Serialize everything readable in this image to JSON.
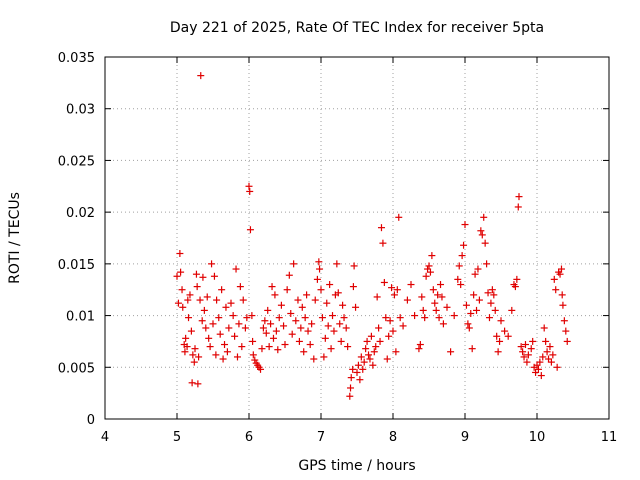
{
  "chart_data": {
    "type": "scatter",
    "title": "Day 221 of 2025, Rate Of TEC Index for receiver 5pta",
    "xlabel": "GPS time / hours",
    "ylabel": "ROTI / TECUs",
    "xlim": [
      4,
      11
    ],
    "ylim": [
      0,
      0.035
    ],
    "xticks": [
      "4",
      "5",
      "6",
      "7",
      "8",
      "9",
      "10",
      "11"
    ],
    "yticks": [
      "0",
      "0.005",
      "0.01",
      "0.015",
      "0.02",
      "0.025",
      "0.03",
      "0.035"
    ],
    "marker": "+",
    "color": "#e00000",
    "grid": true,
    "series": [
      {
        "name": "ROTI",
        "points": [
          [
            5.0,
            0.0138
          ],
          [
            5.02,
            0.0112
          ],
          [
            5.04,
            0.016
          ],
          [
            5.05,
            0.0142
          ],
          [
            5.07,
            0.0125
          ],
          [
            5.08,
            0.0108
          ],
          [
            5.1,
            0.0072
          ],
          [
            5.11,
            0.0065
          ],
          [
            5.12,
            0.0078
          ],
          [
            5.14,
            0.007
          ],
          [
            5.15,
            0.0115
          ],
          [
            5.16,
            0.0098
          ],
          [
            5.18,
            0.012
          ],
          [
            5.2,
            0.0085
          ],
          [
            5.21,
            0.0035
          ],
          [
            5.22,
            0.0062
          ],
          [
            5.24,
            0.0055
          ],
          [
            5.25,
            0.0068
          ],
          [
            5.27,
            0.014
          ],
          [
            5.28,
            0.0128
          ],
          [
            5.29,
            0.0034
          ],
          [
            5.3,
            0.006
          ],
          [
            5.32,
            0.0115
          ],
          [
            5.33,
            0.0332
          ],
          [
            5.35,
            0.0095
          ],
          [
            5.36,
            0.0137
          ],
          [
            5.38,
            0.0105
          ],
          [
            5.4,
            0.0088
          ],
          [
            5.42,
            0.0118
          ],
          [
            5.44,
            0.0078
          ],
          [
            5.46,
            0.007
          ],
          [
            5.48,
            0.015
          ],
          [
            5.5,
            0.0092
          ],
          [
            5.52,
            0.0138
          ],
          [
            5.54,
            0.0062
          ],
          [
            5.55,
            0.0115
          ],
          [
            5.58,
            0.0098
          ],
          [
            5.6,
            0.0082
          ],
          [
            5.62,
            0.0125
          ],
          [
            5.64,
            0.0058
          ],
          [
            5.66,
            0.0072
          ],
          [
            5.68,
            0.0108
          ],
          [
            5.7,
            0.0065
          ],
          [
            5.72,
            0.0088
          ],
          [
            5.75,
            0.0112
          ],
          [
            5.78,
            0.01
          ],
          [
            5.8,
            0.008
          ],
          [
            5.82,
            0.0145
          ],
          [
            5.84,
            0.006
          ],
          [
            5.86,
            0.0092
          ],
          [
            5.88,
            0.0128
          ],
          [
            5.9,
            0.007
          ],
          [
            5.92,
            0.0115
          ],
          [
            5.95,
            0.0088
          ],
          [
            5.97,
            0.0098
          ],
          [
            6.0,
            0.0225
          ],
          [
            6.01,
            0.022
          ],
          [
            6.02,
            0.0183
          ],
          [
            6.04,
            0.01
          ],
          [
            6.05,
            0.0075
          ],
          [
            6.06,
            0.0062
          ],
          [
            6.08,
            0.0057
          ],
          [
            6.1,
            0.0054
          ],
          [
            6.12,
            0.0052
          ],
          [
            6.14,
            0.005
          ],
          [
            6.16,
            0.0048
          ],
          [
            6.18,
            0.0068
          ],
          [
            6.2,
            0.0088
          ],
          [
            6.22,
            0.0095
          ],
          [
            6.24,
            0.0083
          ],
          [
            6.26,
            0.0105
          ],
          [
            6.28,
            0.007
          ],
          [
            6.3,
            0.0092
          ],
          [
            6.32,
            0.0128
          ],
          [
            6.34,
            0.0078
          ],
          [
            6.36,
            0.012
          ],
          [
            6.38,
            0.0085
          ],
          [
            6.4,
            0.0067
          ],
          [
            6.42,
            0.0098
          ],
          [
            6.45,
            0.011
          ],
          [
            6.48,
            0.009
          ],
          [
            6.5,
            0.0072
          ],
          [
            6.53,
            0.0125
          ],
          [
            6.56,
            0.0139
          ],
          [
            6.58,
            0.0102
          ],
          [
            6.6,
            0.0082
          ],
          [
            6.62,
            0.015
          ],
          [
            6.65,
            0.0095
          ],
          [
            6.68,
            0.0115
          ],
          [
            6.7,
            0.0075
          ],
          [
            6.72,
            0.0088
          ],
          [
            6.74,
            0.0108
          ],
          [
            6.76,
            0.0065
          ],
          [
            6.78,
            0.0098
          ],
          [
            6.8,
            0.012
          ],
          [
            6.82,
            0.0085
          ],
          [
            6.85,
            0.0072
          ],
          [
            6.87,
            0.0092
          ],
          [
            6.9,
            0.0058
          ],
          [
            6.92,
            0.0115
          ],
          [
            6.95,
            0.0135
          ],
          [
            6.97,
            0.0152
          ],
          [
            6.98,
            0.0145
          ],
          [
            7.0,
            0.0125
          ],
          [
            7.02,
            0.0098
          ],
          [
            7.04,
            0.006
          ],
          [
            7.06,
            0.0078
          ],
          [
            7.08,
            0.0112
          ],
          [
            7.1,
            0.009
          ],
          [
            7.12,
            0.013
          ],
          [
            7.14,
            0.0068
          ],
          [
            7.16,
            0.01
          ],
          [
            7.18,
            0.0085
          ],
          [
            7.2,
            0.012
          ],
          [
            7.22,
            0.015
          ],
          [
            7.24,
            0.0122
          ],
          [
            7.26,
            0.0092
          ],
          [
            7.28,
            0.0075
          ],
          [
            7.3,
            0.011
          ],
          [
            7.32,
            0.0098
          ],
          [
            7.35,
            0.0088
          ],
          [
            7.37,
            0.007
          ],
          [
            7.4,
            0.0022
          ],
          [
            7.41,
            0.003
          ],
          [
            7.42,
            0.004
          ],
          [
            7.44,
            0.0048
          ],
          [
            7.45,
            0.0128
          ],
          [
            7.46,
            0.0148
          ],
          [
            7.48,
            0.0108
          ],
          [
            7.5,
            0.0045
          ],
          [
            7.52,
            0.0052
          ],
          [
            7.54,
            0.0038
          ],
          [
            7.56,
            0.006
          ],
          [
            7.58,
            0.0048
          ],
          [
            7.6,
            0.0055
          ],
          [
            7.62,
            0.0068
          ],
          [
            7.64,
            0.0075
          ],
          [
            7.66,
            0.0062
          ],
          [
            7.68,
            0.0058
          ],
          [
            7.7,
            0.008
          ],
          [
            7.72,
            0.0052
          ],
          [
            7.74,
            0.0065
          ],
          [
            7.76,
            0.007
          ],
          [
            7.78,
            0.0118
          ],
          [
            7.8,
            0.0088
          ],
          [
            7.82,
            0.0075
          ],
          [
            7.84,
            0.0185
          ],
          [
            7.86,
            0.017
          ],
          [
            7.88,
            0.0132
          ],
          [
            7.9,
            0.0098
          ],
          [
            7.92,
            0.0058
          ],
          [
            7.94,
            0.008
          ],
          [
            7.96,
            0.0095
          ],
          [
            7.98,
            0.0127
          ],
          [
            8.0,
            0.0085
          ],
          [
            8.02,
            0.012
          ],
          [
            8.04,
            0.0065
          ],
          [
            8.06,
            0.0125
          ],
          [
            8.08,
            0.0195
          ],
          [
            8.1,
            0.0098
          ],
          [
            8.14,
            0.009
          ],
          [
            8.2,
            0.0115
          ],
          [
            8.25,
            0.013
          ],
          [
            8.3,
            0.01
          ],
          [
            8.36,
            0.0068
          ],
          [
            8.38,
            0.0072
          ],
          [
            8.4,
            0.0118
          ],
          [
            8.42,
            0.0105
          ],
          [
            8.44,
            0.0098
          ],
          [
            8.46,
            0.0138
          ],
          [
            8.48,
            0.0145
          ],
          [
            8.5,
            0.0148
          ],
          [
            8.52,
            0.0142
          ],
          [
            8.54,
            0.0158
          ],
          [
            8.56,
            0.0125
          ],
          [
            8.58,
            0.0112
          ],
          [
            8.6,
            0.0105
          ],
          [
            8.62,
            0.012
          ],
          [
            8.64,
            0.0098
          ],
          [
            8.66,
            0.013
          ],
          [
            8.68,
            0.0118
          ],
          [
            8.7,
            0.0092
          ],
          [
            8.75,
            0.0108
          ],
          [
            8.8,
            0.0065
          ],
          [
            8.85,
            0.01
          ],
          [
            8.9,
            0.0135
          ],
          [
            8.92,
            0.0148
          ],
          [
            8.94,
            0.013
          ],
          [
            8.96,
            0.0158
          ],
          [
            8.98,
            0.0168
          ],
          [
            9.0,
            0.0188
          ],
          [
            9.02,
            0.011
          ],
          [
            9.04,
            0.0092
          ],
          [
            9.06,
            0.0088
          ],
          [
            9.08,
            0.0102
          ],
          [
            9.1,
            0.0068
          ],
          [
            9.12,
            0.012
          ],
          [
            9.14,
            0.014
          ],
          [
            9.16,
            0.0105
          ],
          [
            9.18,
            0.0145
          ],
          [
            9.2,
            0.0115
          ],
          [
            9.22,
            0.0182
          ],
          [
            9.24,
            0.0178
          ],
          [
            9.26,
            0.0195
          ],
          [
            9.28,
            0.017
          ],
          [
            9.3,
            0.015
          ],
          [
            9.32,
            0.0122
          ],
          [
            9.34,
            0.0098
          ],
          [
            9.36,
            0.0112
          ],
          [
            9.38,
            0.0125
          ],
          [
            9.4,
            0.012
          ],
          [
            9.42,
            0.0105
          ],
          [
            9.44,
            0.008
          ],
          [
            9.46,
            0.0065
          ],
          [
            9.48,
            0.0075
          ],
          [
            9.5,
            0.0095
          ],
          [
            9.55,
            0.0085
          ],
          [
            9.6,
            0.008
          ],
          [
            9.65,
            0.0105
          ],
          [
            9.68,
            0.013
          ],
          [
            9.7,
            0.0128
          ],
          [
            9.72,
            0.0135
          ],
          [
            9.74,
            0.0205
          ],
          [
            9.75,
            0.0215
          ],
          [
            9.78,
            0.007
          ],
          [
            9.8,
            0.0065
          ],
          [
            9.82,
            0.006
          ],
          [
            9.84,
            0.0072
          ],
          [
            9.86,
            0.0055
          ],
          [
            9.88,
            0.0062
          ],
          [
            9.92,
            0.0068
          ],
          [
            9.94,
            0.0075
          ],
          [
            9.96,
            0.005
          ],
          [
            9.98,
            0.0045
          ],
          [
            10.0,
            0.0052
          ],
          [
            10.02,
            0.0048
          ],
          [
            10.04,
            0.0055
          ],
          [
            10.06,
            0.0042
          ],
          [
            10.08,
            0.006
          ],
          [
            10.1,
            0.0088
          ],
          [
            10.12,
            0.0075
          ],
          [
            10.14,
            0.0065
          ],
          [
            10.16,
            0.0058
          ],
          [
            10.18,
            0.007
          ],
          [
            10.2,
            0.0055
          ],
          [
            10.22,
            0.0062
          ],
          [
            10.24,
            0.0135
          ],
          [
            10.26,
            0.0125
          ],
          [
            10.28,
            0.005
          ],
          [
            10.3,
            0.0142
          ],
          [
            10.32,
            0.014
          ],
          [
            10.34,
            0.0145
          ],
          [
            10.35,
            0.012
          ],
          [
            10.36,
            0.011
          ],
          [
            10.38,
            0.0095
          ],
          [
            10.4,
            0.0085
          ],
          [
            10.42,
            0.0075
          ]
        ]
      }
    ]
  }
}
